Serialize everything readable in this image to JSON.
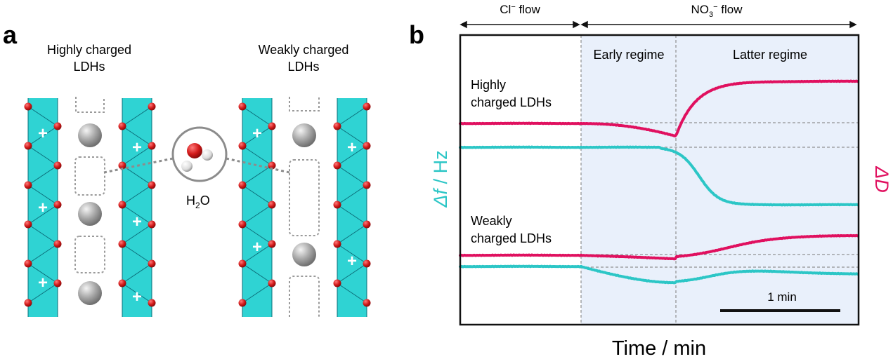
{
  "panel_a": {
    "label": "a",
    "highly_title_line1": "Highly  charged",
    "highly_title_line2": "LDHs",
    "weakly_title_line1": "Weakly charged",
    "weakly_title_line2": "LDHs",
    "water_label": "H",
    "water_sub": "2",
    "water_tail": "O",
    "charge_symbol": "+"
  },
  "panel_b": {
    "label": "b",
    "cl_flow": "Cl",
    "cl_sup": "−",
    "cl_tail": " flow",
    "no3_flow": "NO",
    "no3_sub": "3",
    "no3_sup": "−",
    "no3_tail": " flow",
    "early_regime": "Early regime",
    "latter_regime": "Latter regime",
    "highly_line1": "Highly",
    "highly_line2": "charged LDHs",
    "weakly_line1": "Weakly",
    "weakly_line2": "charged LDHs",
    "scale_bar_label": "1 min",
    "ylabel_left_italic": "Δf",
    "ylabel_left_rest": " / Hz",
    "ylabel_right": "ΔD",
    "xlabel": "Time / min",
    "colors": {
      "delta_f": "#2cc6c6",
      "delta_d": "#e0105f",
      "regime_shade": "#e9f0fb",
      "layer": "#2fd3d3",
      "oxygen": "#d01a1a"
    }
  }
}
